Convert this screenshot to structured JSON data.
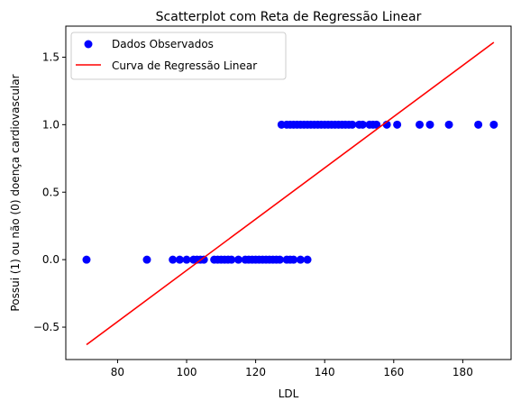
{
  "chart_data": {
    "type": "scatter",
    "title": "Scatterplot com Reta de Regressão Linear",
    "xlabel": "LDL",
    "ylabel": "Possui (1) ou não (0) doença cardiovascular",
    "xlim": [
      65,
      194
    ],
    "ylim": [
      -0.74,
      1.73
    ],
    "xticks": [
      80,
      100,
      120,
      140,
      160,
      180
    ],
    "yticks": [
      -0.5,
      0.0,
      0.5,
      1.0,
      1.5
    ],
    "xtick_labels": [
      "80",
      "100",
      "120",
      "140",
      "160",
      "180"
    ],
    "ytick_labels": [
      "−0.5",
      "0.0",
      "0.5",
      "1.0",
      "1.5"
    ],
    "grid": false,
    "legend_position": "top-left",
    "series": [
      {
        "name": "Dados Observados",
        "kind": "scatter",
        "color": "#0000ff",
        "x": [
          71,
          88.5,
          96,
          98,
          100,
          102,
          103,
          104,
          105,
          108,
          109,
          110,
          111,
          112,
          113,
          115,
          117,
          118,
          119,
          120,
          121,
          122,
          123,
          124,
          125,
          126,
          127,
          129,
          130,
          131,
          133,
          135,
          127.5,
          129,
          130,
          131,
          132,
          133,
          134,
          135,
          136,
          137,
          138,
          139,
          140,
          141,
          142,
          143,
          144,
          145,
          146,
          147,
          148,
          150,
          151,
          153,
          154,
          155,
          158,
          161,
          167.5,
          170.5,
          176,
          184.5,
          189
        ],
        "y": [
          0,
          0,
          0,
          0,
          0,
          0,
          0,
          0,
          0,
          0,
          0,
          0,
          0,
          0,
          0,
          0,
          0,
          0,
          0,
          0,
          0,
          0,
          0,
          0,
          0,
          0,
          0,
          0,
          0,
          0,
          0,
          0,
          1,
          1,
          1,
          1,
          1,
          1,
          1,
          1,
          1,
          1,
          1,
          1,
          1,
          1,
          1,
          1,
          1,
          1,
          1,
          1,
          1,
          1,
          1,
          1,
          1,
          1,
          1,
          1,
          1,
          1,
          1,
          1,
          1
        ]
      },
      {
        "name": "Curva de Regressão Linear",
        "kind": "line",
        "color": "#ff0000",
        "x": [
          71,
          189
        ],
        "y": [
          -0.63,
          1.61
        ]
      }
    ]
  }
}
